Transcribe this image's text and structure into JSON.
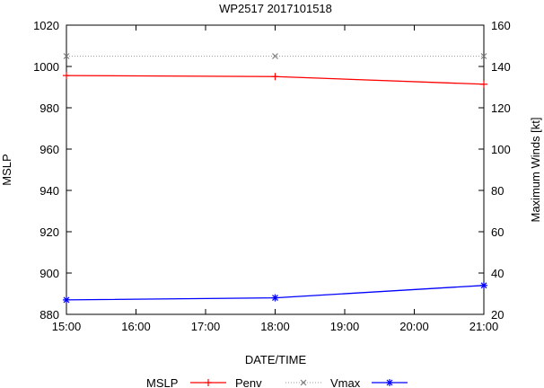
{
  "chart_data": {
    "type": "line",
    "title": "WP2517 2017101518",
    "xlabel": "DATE/TIME",
    "ylabel_left": "MSLP",
    "ylabel_right": "Maximum Winds [kt]",
    "x_ticks": [
      "15:00",
      "16:00",
      "17:00",
      "18:00",
      "19:00",
      "20:00",
      "21:00"
    ],
    "x_hours": [
      15,
      16,
      17,
      18,
      19,
      20,
      21
    ],
    "xlim": [
      15,
      21
    ],
    "y_left_ticks": [
      880,
      900,
      920,
      940,
      960,
      980,
      1000,
      1020
    ],
    "y_left_lim": [
      880,
      1020
    ],
    "y_right_ticks": [
      20,
      40,
      60,
      80,
      100,
      120,
      140,
      160
    ],
    "y_right_lim": [
      20,
      160
    ],
    "legend_title": "MSLP",
    "series": [
      {
        "name": "Penv",
        "axis": "left",
        "color": "#ff0000",
        "marker": "plus",
        "x": [
          15,
          18,
          21
        ],
        "values": [
          995.6,
          995.1,
          991.4
        ]
      },
      {
        "name": "Vmax",
        "axis": "left",
        "color": "#808080",
        "marker": "cross",
        "dotted": true,
        "x": [
          15,
          18,
          21
        ],
        "values": [
          1005,
          1005,
          1005
        ]
      },
      {
        "name": "",
        "axis": "right",
        "color": "#0000ff",
        "marker": "star",
        "x": [
          15,
          18,
          21
        ],
        "values": [
          27,
          28,
          34
        ]
      }
    ]
  }
}
